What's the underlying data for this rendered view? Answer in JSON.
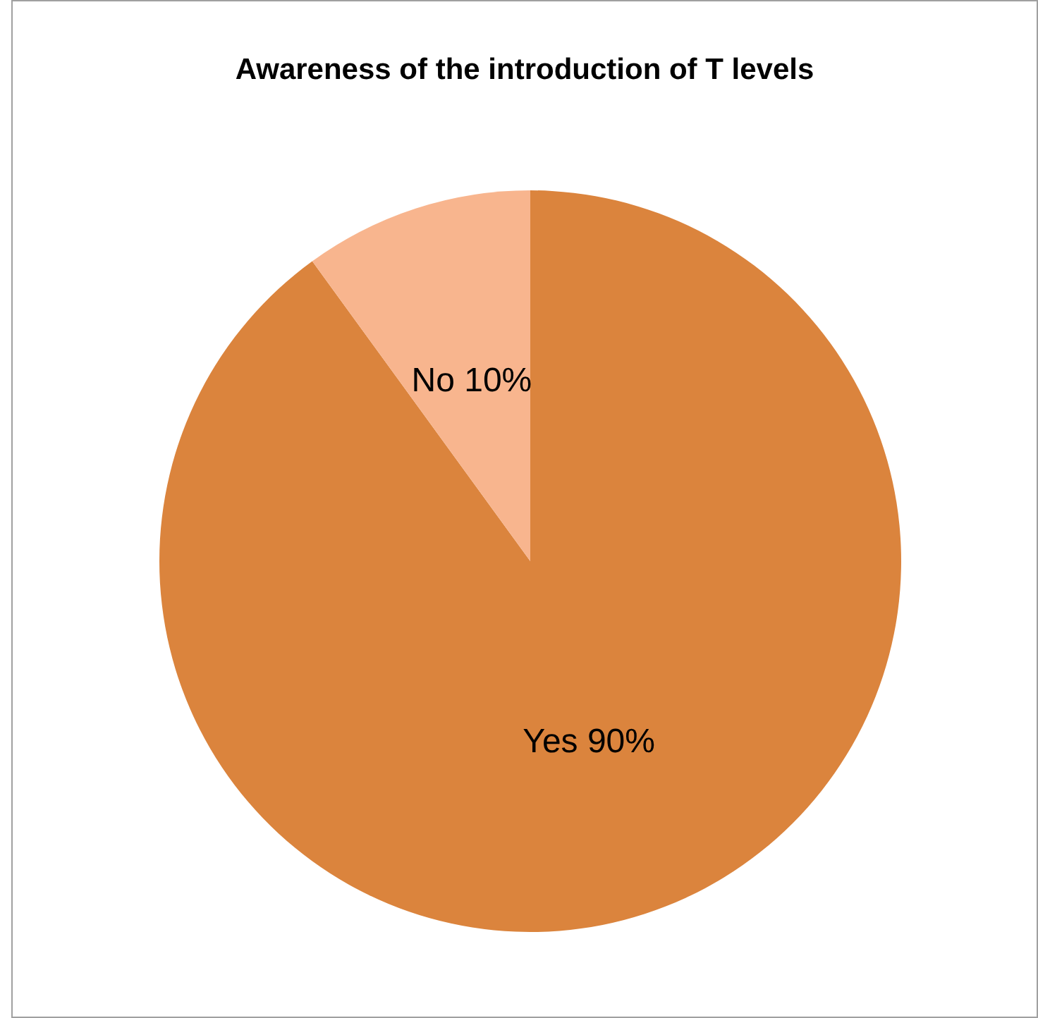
{
  "chart_data": {
    "type": "pie",
    "title": "Awareness of the introduction of T levels",
    "categories": [
      "Yes",
      "No"
    ],
    "values": [
      90,
      10
    ],
    "colors": [
      "#db843d",
      "#f8b58e"
    ],
    "value_labels": [
      "90%",
      "10%"
    ],
    "legend": false
  }
}
